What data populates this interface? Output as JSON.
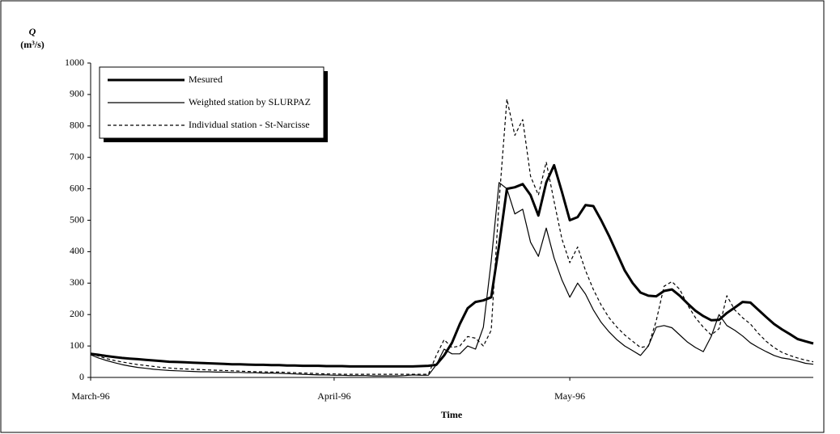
{
  "chart_data": {
    "type": "line",
    "y_title": "Q",
    "y_unit": "(m³/s)",
    "x_title": "Time",
    "categories": [
      "March-96",
      null,
      null,
      null,
      null,
      null,
      null,
      null,
      null,
      null,
      null,
      null,
      null,
      null,
      null,
      null,
      null,
      null,
      null,
      null,
      null,
      null,
      null,
      null,
      null,
      null,
      null,
      null,
      null,
      null,
      null,
      "April-96",
      null,
      null,
      null,
      null,
      null,
      null,
      null,
      null,
      null,
      null,
      null,
      null,
      null,
      null,
      null,
      null,
      null,
      null,
      null,
      null,
      null,
      null,
      null,
      null,
      null,
      null,
      null,
      null,
      null,
      "May-96",
      null,
      null,
      null,
      null,
      null,
      null,
      null,
      null,
      null,
      null,
      null,
      null,
      null,
      null,
      null,
      null,
      null,
      null,
      null,
      null,
      null,
      null,
      null,
      null,
      null,
      null,
      null,
      null,
      null,
      null,
      null
    ],
    "series": [
      {
        "name": "Mesured",
        "color": "#000000",
        "line_width": 3,
        "line_style": "solid",
        "values": [
          75,
          72,
          68,
          65,
          62,
          60,
          58,
          56,
          54,
          52,
          50,
          49,
          48,
          47,
          46,
          45,
          44,
          43,
          42,
          42,
          41,
          40,
          40,
          39,
          39,
          38,
          38,
          37,
          37,
          37,
          36,
          36,
          36,
          35,
          35,
          35,
          35,
          35,
          35,
          35,
          35,
          35,
          36,
          37,
          40,
          70,
          110,
          170,
          220,
          240,
          245,
          255,
          420,
          600,
          605,
          615,
          580,
          515,
          620,
          675,
          590,
          500,
          510,
          548,
          545,
          500,
          450,
          395,
          340,
          300,
          270,
          260,
          258,
          275,
          280,
          260,
          235,
          212,
          195,
          182,
          183,
          205,
          222,
          240,
          238,
          215,
          192,
          170,
          153,
          138,
          122,
          115,
          108
        ]
      },
      {
        "name": "Weighted station by SLURPAZ",
        "color": "#000000",
        "line_width": 1.2,
        "line_style": "solid",
        "values": [
          72,
          62,
          54,
          47,
          41,
          36,
          32,
          29,
          26,
          24,
          22,
          21,
          20,
          19,
          18,
          18,
          17,
          17,
          16,
          16,
          15,
          15,
          14,
          14,
          13,
          12,
          11,
          10,
          9,
          8,
          8,
          7,
          7,
          6,
          6,
          6,
          5,
          5,
          5,
          5,
          6,
          8,
          7,
          7,
          40,
          90,
          75,
          75,
          100,
          90,
          160,
          370,
          620,
          600,
          520,
          535,
          430,
          385,
          475,
          380,
          310,
          255,
          300,
          265,
          215,
          175,
          145,
          120,
          100,
          85,
          70,
          100,
          160,
          165,
          158,
          135,
          112,
          95,
          82,
          130,
          200,
          165,
          150,
          132,
          110,
          95,
          82,
          70,
          62,
          58,
          52,
          45,
          42
        ]
      },
      {
        "name": "Individual station - St-Narcisse",
        "color": "#000000",
        "line_width": 1.2,
        "line_style": "dashed",
        "values": [
          76,
          68,
          60,
          54,
          49,
          45,
          41,
          38,
          35,
          32,
          30,
          28,
          27,
          26,
          25,
          24,
          23,
          22,
          21,
          20,
          19,
          18,
          18,
          17,
          17,
          16,
          15,
          14,
          13,
          12,
          11,
          11,
          10,
          10,
          10,
          10,
          10,
          10,
          10,
          10,
          10,
          10,
          10,
          10,
          70,
          120,
          95,
          100,
          130,
          125,
          100,
          150,
          560,
          885,
          770,
          820,
          640,
          580,
          685,
          560,
          440,
          365,
          415,
          340,
          280,
          230,
          190,
          160,
          135,
          115,
          95,
          100,
          180,
          290,
          305,
          280,
          230,
          190,
          160,
          135,
          155,
          260,
          215,
          190,
          170,
          140,
          115,
          95,
          80,
          70,
          62,
          55,
          50
        ]
      }
    ],
    "ylim": [
      0,
      1000
    ],
    "yticks": [
      0,
      100,
      200,
      300,
      400,
      500,
      600,
      700,
      800,
      900,
      1000
    ],
    "legend": "upper-left"
  }
}
